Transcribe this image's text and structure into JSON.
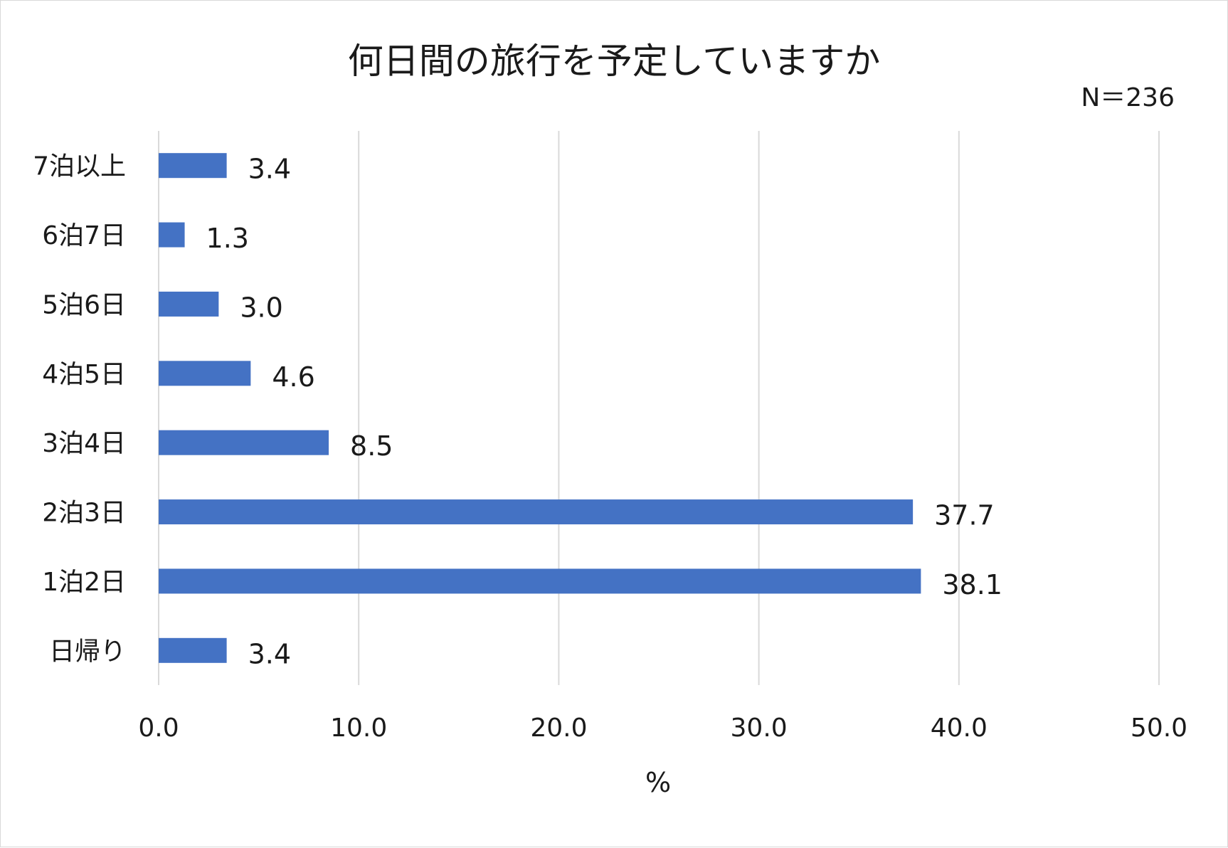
{
  "chart_data": {
    "type": "bar",
    "orientation": "horizontal",
    "title": "何日間の旅行を予定していますか",
    "note": "N＝236",
    "xlabel": "%",
    "ylabel": "",
    "xlim": [
      0,
      50
    ],
    "ticks": [
      "0.0",
      "10.0",
      "20.0",
      "30.0",
      "40.0",
      "50.0"
    ],
    "tick_values": [
      0,
      10,
      20,
      30,
      40,
      50
    ],
    "grid": true,
    "categories": [
      "7泊以上",
      "6泊7日",
      "5泊6日",
      "4泊5日",
      "3泊4日",
      "2泊3日",
      "1泊2日",
      "日帰り"
    ],
    "values": [
      3.4,
      1.3,
      3.0,
      4.6,
      8.5,
      37.7,
      38.1,
      3.4
    ],
    "value_labels": [
      "3.4",
      "1.3",
      "3.0",
      "4.6",
      "8.5",
      "37.7",
      "38.1",
      "3.4"
    ],
    "bar_color": "#4472c4"
  }
}
